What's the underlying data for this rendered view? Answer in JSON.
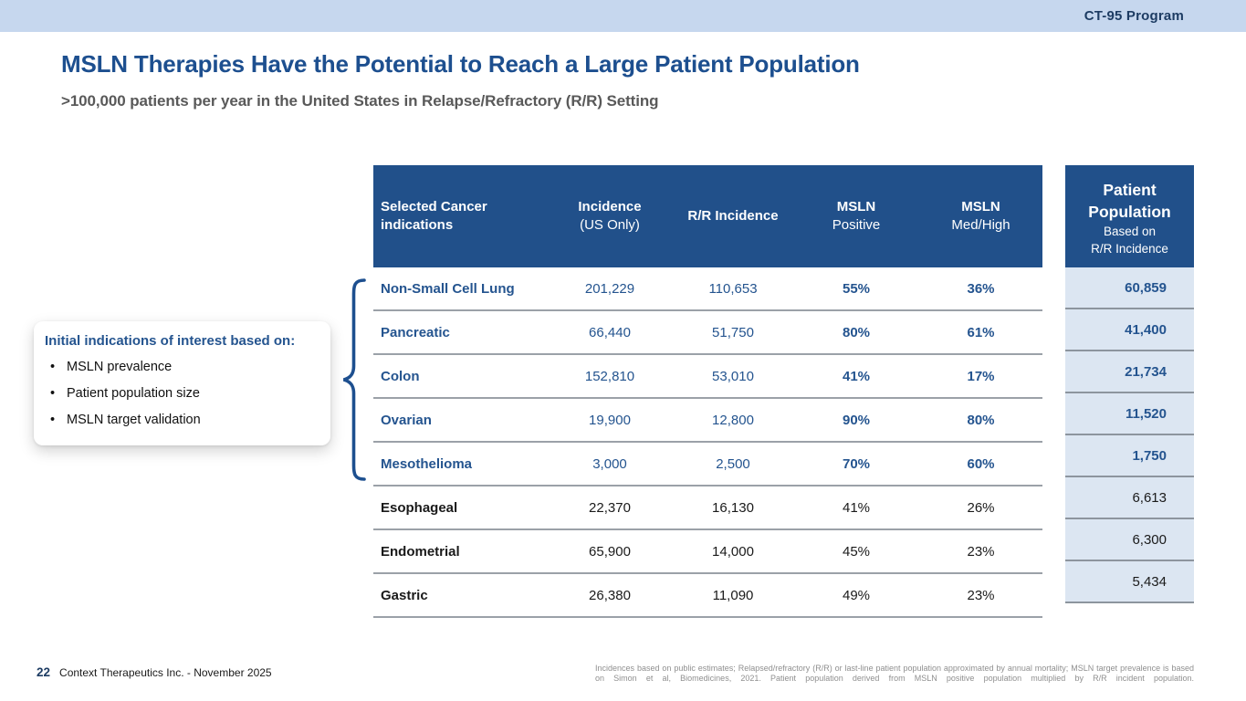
{
  "page": {
    "program_badge": "CT-95 Program",
    "title": "MSLN Therapies Have the Potential to Reach a Large Patient Population",
    "subtitle": ">100,000 patients per year in the United States in Relapse/Refractory (R/R) Setting"
  },
  "callout": {
    "title": "Initial indications of interest based on:",
    "bullets": [
      "MSLN prevalence",
      "Patient population size",
      "MSLN target validation"
    ]
  },
  "table": {
    "columns": [
      {
        "line1": "Selected Cancer",
        "line2": "indications"
      },
      {
        "line1": "Incidence",
        "line2": "(US Only)"
      },
      {
        "line1": "R/R Incidence",
        "line2": ""
      },
      {
        "line1": "MSLN",
        "line2": "Positive"
      },
      {
        "line1": "MSLN",
        "line2": "Med/High"
      }
    ],
    "pp_header": {
      "title_line1": "Patient",
      "title_line2": "Population",
      "sub_line1": "Based on",
      "sub_line2": "R/R Incidence"
    },
    "rows": [
      {
        "indication": "Non-Small Cell Lung",
        "incidence": "201,229",
        "rr_incidence": "110,653",
        "msln_positive": "55%",
        "msln_med_high": "36%",
        "patient_population": "60,859",
        "highlighted": true
      },
      {
        "indication": "Pancreatic",
        "incidence": "66,440",
        "rr_incidence": "51,750",
        "msln_positive": "80%",
        "msln_med_high": "61%",
        "patient_population": "41,400",
        "highlighted": true
      },
      {
        "indication": "Colon",
        "incidence": "152,810",
        "rr_incidence": "53,010",
        "msln_positive": "41%",
        "msln_med_high": "17%",
        "patient_population": "21,734",
        "highlighted": true
      },
      {
        "indication": "Ovarian",
        "incidence": "19,900",
        "rr_incidence": "12,800",
        "msln_positive": "90%",
        "msln_med_high": "80%",
        "patient_population": "11,520",
        "highlighted": true
      },
      {
        "indication": "Mesothelioma",
        "incidence": "3,000",
        "rr_incidence": "2,500",
        "msln_positive": "70%",
        "msln_med_high": "60%",
        "patient_population": "1,750",
        "highlighted": true
      },
      {
        "indication": "Esophageal",
        "incidence": "22,370",
        "rr_incidence": "16,130",
        "msln_positive": "41%",
        "msln_med_high": "26%",
        "patient_population": "6,613",
        "highlighted": false
      },
      {
        "indication": "Endometrial",
        "incidence": "65,900",
        "rr_incidence": "14,000",
        "msln_positive": "45%",
        "msln_med_high": "23%",
        "patient_population": "6,300",
        "highlighted": false
      },
      {
        "indication": "Gastric",
        "incidence": "26,380",
        "rr_incidence": "11,090",
        "msln_positive": "49%",
        "msln_med_high": "23%",
        "patient_population": "5,434",
        "highlighted": false
      }
    ]
  },
  "footer": {
    "page_number": "22",
    "company_line": "Context Therapeutics Inc. - November 2025",
    "footnote": "Incidences based on public estimates; Relapsed/refractory (R/R) or last-line patient population approximated by annual mortality; MSLN target prevalence is based on Simon et al, Biomedicines, 2021. Patient population derived from MSLN positive population multiplied by R/R incident population."
  },
  "colors": {
    "band": "#c6d7ee",
    "header_blue": "#21508a",
    "accent_blue": "#24548f",
    "title_blue": "#1d4f8f",
    "cell_light_blue": "#dce6f2"
  }
}
